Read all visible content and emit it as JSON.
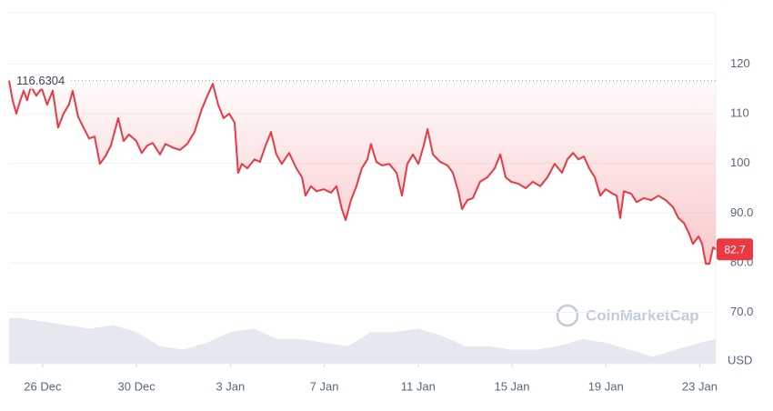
{
  "chart_data": {
    "type": "line",
    "watermark": "CoinMarketCap",
    "currency": "USD",
    "x": [
      -0.43,
      -0.28,
      -0.12,
      0.03,
      0.19,
      0.34,
      0.5,
      0.73,
      0.96,
      1.19,
      1.43,
      1.66,
      1.89,
      2.12,
      2.28,
      2.51,
      2.74,
      2.98,
      3.21,
      3.44,
      3.67,
      3.91,
      4.22,
      4.45,
      4.68,
      4.99,
      5.22,
      5.46,
      5.69,
      6.0,
      6.23,
      6.54,
      6.85,
      7.16,
      7.47,
      7.78,
      8.02,
      8.25,
      8.48,
      8.71,
      8.95,
      9.18,
      9.33,
      9.49,
      9.72,
      10.03,
      10.26,
      10.5,
      10.73,
      10.96,
      11.19,
      11.5,
      11.81,
      12.05,
      12.2,
      12.43,
      12.67,
      12.98,
      13.29,
      13.52,
      13.75,
      13.91,
      14.14,
      14.37,
      14.6,
      14.84,
      14.99,
      15.22,
      15.46,
      15.77,
      16.08,
      16.31,
      16.54,
      16.78,
      17.01,
      17.24,
      17.4,
      17.63,
      17.94,
      18.25,
      18.48,
      18.71,
      18.87,
      19.1,
      19.33,
      19.64,
      19.95,
      20.26,
      20.5,
      20.73,
      20.96,
      21.27,
      21.58,
      21.89,
      22.2,
      22.51,
      22.82,
      23.13,
      23.36,
      23.6,
      23.83,
      24.06,
      24.29,
      24.53,
      24.76,
      24.99,
      25.22,
      25.46,
      25.61,
      25.77,
      26.08,
      26.31,
      26.62,
      26.93,
      27.24,
      27.55,
      27.86,
      28.09,
      28.33,
      28.56,
      28.71,
      28.95,
      29.1,
      29.26,
      29.41,
      29.57,
      29.68
    ],
    "series": [
      {
        "color": "#ea3943",
        "values": [
          116.6,
          112.7,
          110.0,
          112.4,
          114.6,
          112.7,
          115.5,
          113.6,
          115.1,
          111.8,
          114.6,
          107.2,
          110.0,
          111.8,
          114.6,
          109.4,
          107.2,
          105.0,
          105.4,
          99.9,
          101.4,
          103.6,
          109.1,
          104.5,
          105.8,
          104.5,
          102.1,
          103.6,
          104.1,
          101.8,
          103.9,
          103.2,
          102.7,
          103.9,
          106.3,
          110.9,
          113.6,
          116.0,
          111.8,
          109.1,
          110.0,
          108.2,
          98.1,
          99.9,
          99.0,
          100.8,
          100.3,
          103.6,
          106.3,
          101.8,
          99.9,
          102.1,
          99.0,
          97.2,
          93.5,
          95.4,
          94.4,
          94.8,
          94.1,
          95.4,
          90.8,
          88.6,
          92.6,
          95.4,
          99.0,
          100.8,
          103.9,
          100.3,
          99.6,
          99.9,
          98.1,
          93.5,
          99.9,
          101.8,
          99.9,
          103.6,
          106.9,
          101.8,
          100.3,
          99.6,
          98.1,
          94.4,
          90.8,
          92.6,
          93.0,
          96.3,
          97.2,
          99.0,
          101.8,
          97.2,
          96.3,
          95.9,
          95.0,
          96.3,
          95.4,
          97.2,
          99.9,
          98.1,
          100.8,
          102.1,
          100.8,
          101.4,
          99.0,
          97.2,
          93.5,
          94.8,
          94.1,
          93.5,
          89.0,
          94.4,
          93.9,
          92.2,
          93.0,
          92.6,
          93.5,
          92.6,
          91.2,
          89.0,
          88.0,
          85.7,
          83.8,
          85.3,
          83.8,
          79.8,
          79.8,
          83.1,
          82.7
        ]
      }
    ],
    "volume": {
      "axis": "y2",
      "color": "#e5e8ee",
      "x": [
        -0.43,
        0,
        1,
        2,
        3,
        4,
        5,
        6,
        7,
        8,
        9,
        10,
        11,
        12,
        13,
        14,
        15,
        16,
        17,
        18,
        19,
        20,
        21,
        22,
        23,
        24,
        25,
        26,
        27,
        28,
        29,
        29.68
      ],
      "values": [
        13,
        13,
        12,
        11,
        10,
        11,
        9,
        5,
        4,
        6,
        9,
        10,
        7,
        7,
        6,
        5,
        9,
        9,
        10,
        8,
        5,
        5,
        4,
        4,
        5,
        7,
        6,
        4,
        2,
        4,
        6,
        7
      ]
    },
    "y2lim": [
      0,
      100
    ],
    "reference": 116.6304,
    "last_price": 82.7,
    "xlim": [
      -0.43,
      29.68
    ],
    "xticks": [
      {
        "value": 1,
        "label": "26 Dec"
      },
      {
        "value": 5,
        "label": "30 Dec"
      },
      {
        "value": 9,
        "label": "3 Jan"
      },
      {
        "value": 13,
        "label": "7 Jan"
      },
      {
        "value": 17,
        "label": "11 Jan"
      },
      {
        "value": 21,
        "label": "15 Jan"
      },
      {
        "value": 25,
        "label": "19 Jan"
      },
      {
        "value": 29,
        "label": "23 Jan"
      }
    ],
    "ylim": [
      59.7,
      130.3
    ],
    "yticks": [
      {
        "value": 70,
        "label": "70.0"
      },
      {
        "value": 80,
        "label": "80.0"
      },
      {
        "value": 90,
        "label": "90.0"
      },
      100,
      110,
      120
    ],
    "grid": true
  }
}
